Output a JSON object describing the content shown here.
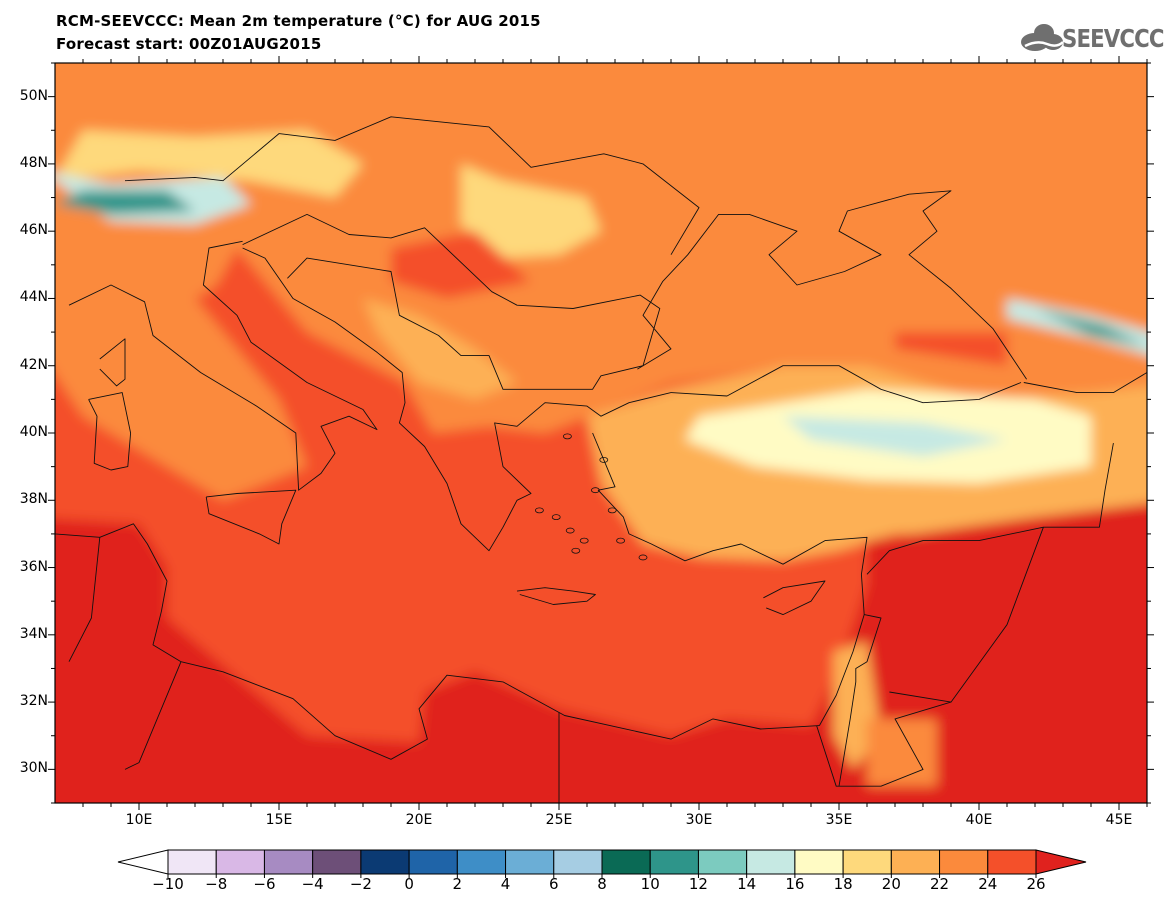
{
  "title_line1": "RCM-SEEVCCC: Mean 2m temperature (°C) for AUG 2015",
  "title_line2": "Forecast start: 00Z01AUG2015",
  "logo_text": "SEEVCCC",
  "lat_labels": [
    "50N",
    "48N",
    "46N",
    "44N",
    "42N",
    "40N",
    "38N",
    "36N",
    "34N",
    "32N",
    "30N"
  ],
  "lat_values": [
    50,
    48,
    46,
    44,
    42,
    40,
    38,
    36,
    34,
    32,
    30
  ],
  "lon_labels": [
    "10E",
    "15E",
    "20E",
    "25E",
    "30E",
    "35E",
    "40E",
    "45E"
  ],
  "lon_values": [
    10,
    15,
    20,
    25,
    30,
    35,
    40,
    45
  ],
  "colorbar": {
    "tick_labels": [
      "-10",
      "-8",
      "-6",
      "-4",
      "-2",
      "0",
      "2",
      "4",
      "6",
      "8",
      "10",
      "12",
      "14",
      "16",
      "18",
      "20",
      "22",
      "24",
      "26"
    ],
    "colors": [
      "#f0e6f6",
      "#d9b8e6",
      "#a78bc2",
      "#6d4f78",
      "#0b3a73",
      "#1f64a8",
      "#3e8ec7",
      "#6baed6",
      "#a6cde3",
      "#0a6a55",
      "#2e958a",
      "#7ccbbf",
      "#c6e9e3",
      "#fffbc4",
      "#fed97c",
      "#fdb054",
      "#fb8a3c",
      "#f4502a"
    ],
    "under_color": "#ffffff",
    "over_color": "#e0221e"
  },
  "map": {
    "lon_range": [
      7,
      46
    ],
    "lat_range": [
      29,
      51
    ],
    "palette": {
      "ocean": "#f4502a",
      "desert": "#e0221e",
      "land_warm": "#fb8a3c",
      "land_mid": "#fdb054",
      "land_cool": "#fed97c",
      "cold": "#fffbc4",
      "alps_cold": "#c6e9e3",
      "alps_core": "#2e958a",
      "alps_deep": "#0a6a55"
    }
  }
}
